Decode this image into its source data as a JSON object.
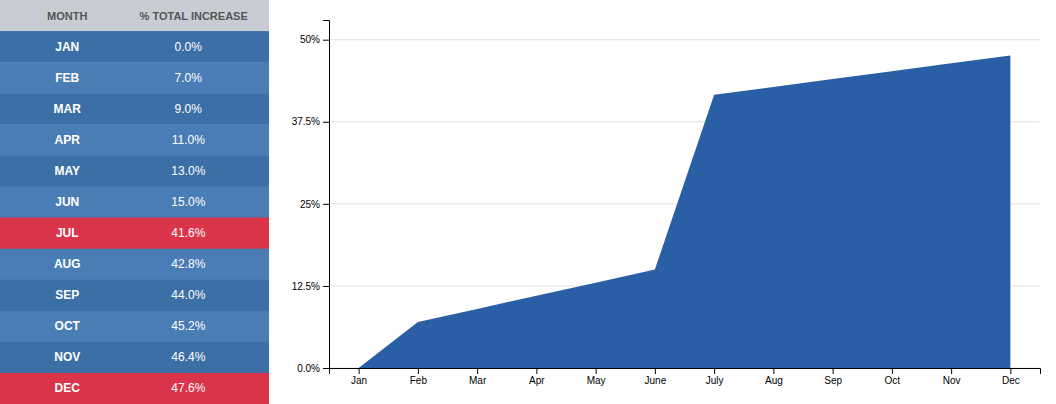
{
  "chart_data": [
    {
      "type": "table",
      "columns": [
        "MONTH",
        "% TOTAL INCREASE"
      ],
      "categories": [
        "JAN",
        "FEB",
        "MAR",
        "APR",
        "MAY",
        "JUN",
        "JUL",
        "AUG",
        "SEP",
        "OCT",
        "NOV",
        "DEC"
      ],
      "values": [
        0.0,
        7.0,
        9.0,
        11.0,
        13.0,
        15.0,
        41.6,
        42.8,
        44.0,
        45.2,
        46.4,
        47.6
      ],
      "value_labels": [
        "0.0%",
        "7.0%",
        "9.0%",
        "11.0%",
        "13.0%",
        "15.0%",
        "41.6%",
        "42.8%",
        "44.0%",
        "45.2%",
        "46.4%",
        "47.6%"
      ],
      "colors": [
        "#3c6fa5",
        "#4a7db5",
        "#3c6fa5",
        "#4a7db5",
        "#3c6fa5",
        "#4a7db5",
        "#d9344a",
        "#4a7db5",
        "#3c6fa5",
        "#4a7db5",
        "#3c6fa5",
        "#d9344a"
      ]
    },
    {
      "type": "area",
      "categories": [
        "Jan",
        "Feb",
        "Mar",
        "Apr",
        "May",
        "June",
        "July",
        "Aug",
        "Sep",
        "Oct",
        "Nov",
        "Dec"
      ],
      "values": [
        0.0,
        7.0,
        9.0,
        11.0,
        13.0,
        15.0,
        41.6,
        42.8,
        44.0,
        45.2,
        46.4,
        47.6
      ],
      "color": "#2a5fa5",
      "ylim": [
        0,
        53
      ],
      "yticks": [
        {
          "value": 0.0,
          "label": "0.0%"
        },
        {
          "value": 12.5,
          "label": "12.5%"
        },
        {
          "value": 25.0,
          "label": "25%"
        },
        {
          "value": 37.5,
          "label": "37.5%"
        },
        {
          "value": 50.0,
          "label": "50%"
        }
      ],
      "grid": true
    }
  ]
}
